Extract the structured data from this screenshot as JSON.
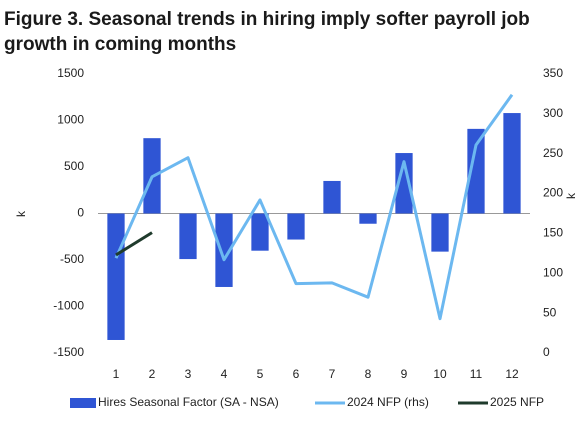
{
  "chart_data": {
    "type": "bar",
    "title": "Figure 3. Seasonal trends in hiring imply softer payroll job growth in coming months",
    "categories": [
      "1",
      "2",
      "3",
      "4",
      "5",
      "6",
      "7",
      "8",
      "9",
      "10",
      "11",
      "12"
    ],
    "series": [
      {
        "name": "Hires Seasonal Factor (SA - NSA)",
        "type": "bar",
        "color": "#2f55d4",
        "values": [
          -1360,
          810,
          -490,
          -790,
          -400,
          -280,
          350,
          -110,
          650,
          -410,
          910,
          1080
        ]
      },
      {
        "name": "2024 NFP (rhs)",
        "type": "line",
        "axis": "y2",
        "color": "#6cb8f0",
        "values": [
          119,
          221,
          245,
          117,
          192,
          87,
          88,
          70,
          240,
          43,
          261,
          324
        ]
      },
      {
        "name": "2025 NFP",
        "type": "line",
        "axis": "y2",
        "color": "#1f3b2c",
        "values": [
          123,
          151,
          null,
          null,
          null,
          null,
          null,
          null,
          null,
          null,
          null,
          null
        ]
      }
    ],
    "ylabel": "k",
    "y2label": "k",
    "ylim": [
      -1500,
      1500
    ],
    "yticks": [
      -1500,
      -1000,
      -500,
      0,
      500,
      1000,
      1500
    ],
    "y2lim": [
      0,
      350
    ],
    "y2ticks": [
      0,
      50,
      100,
      150,
      200,
      250,
      300,
      350
    ]
  }
}
